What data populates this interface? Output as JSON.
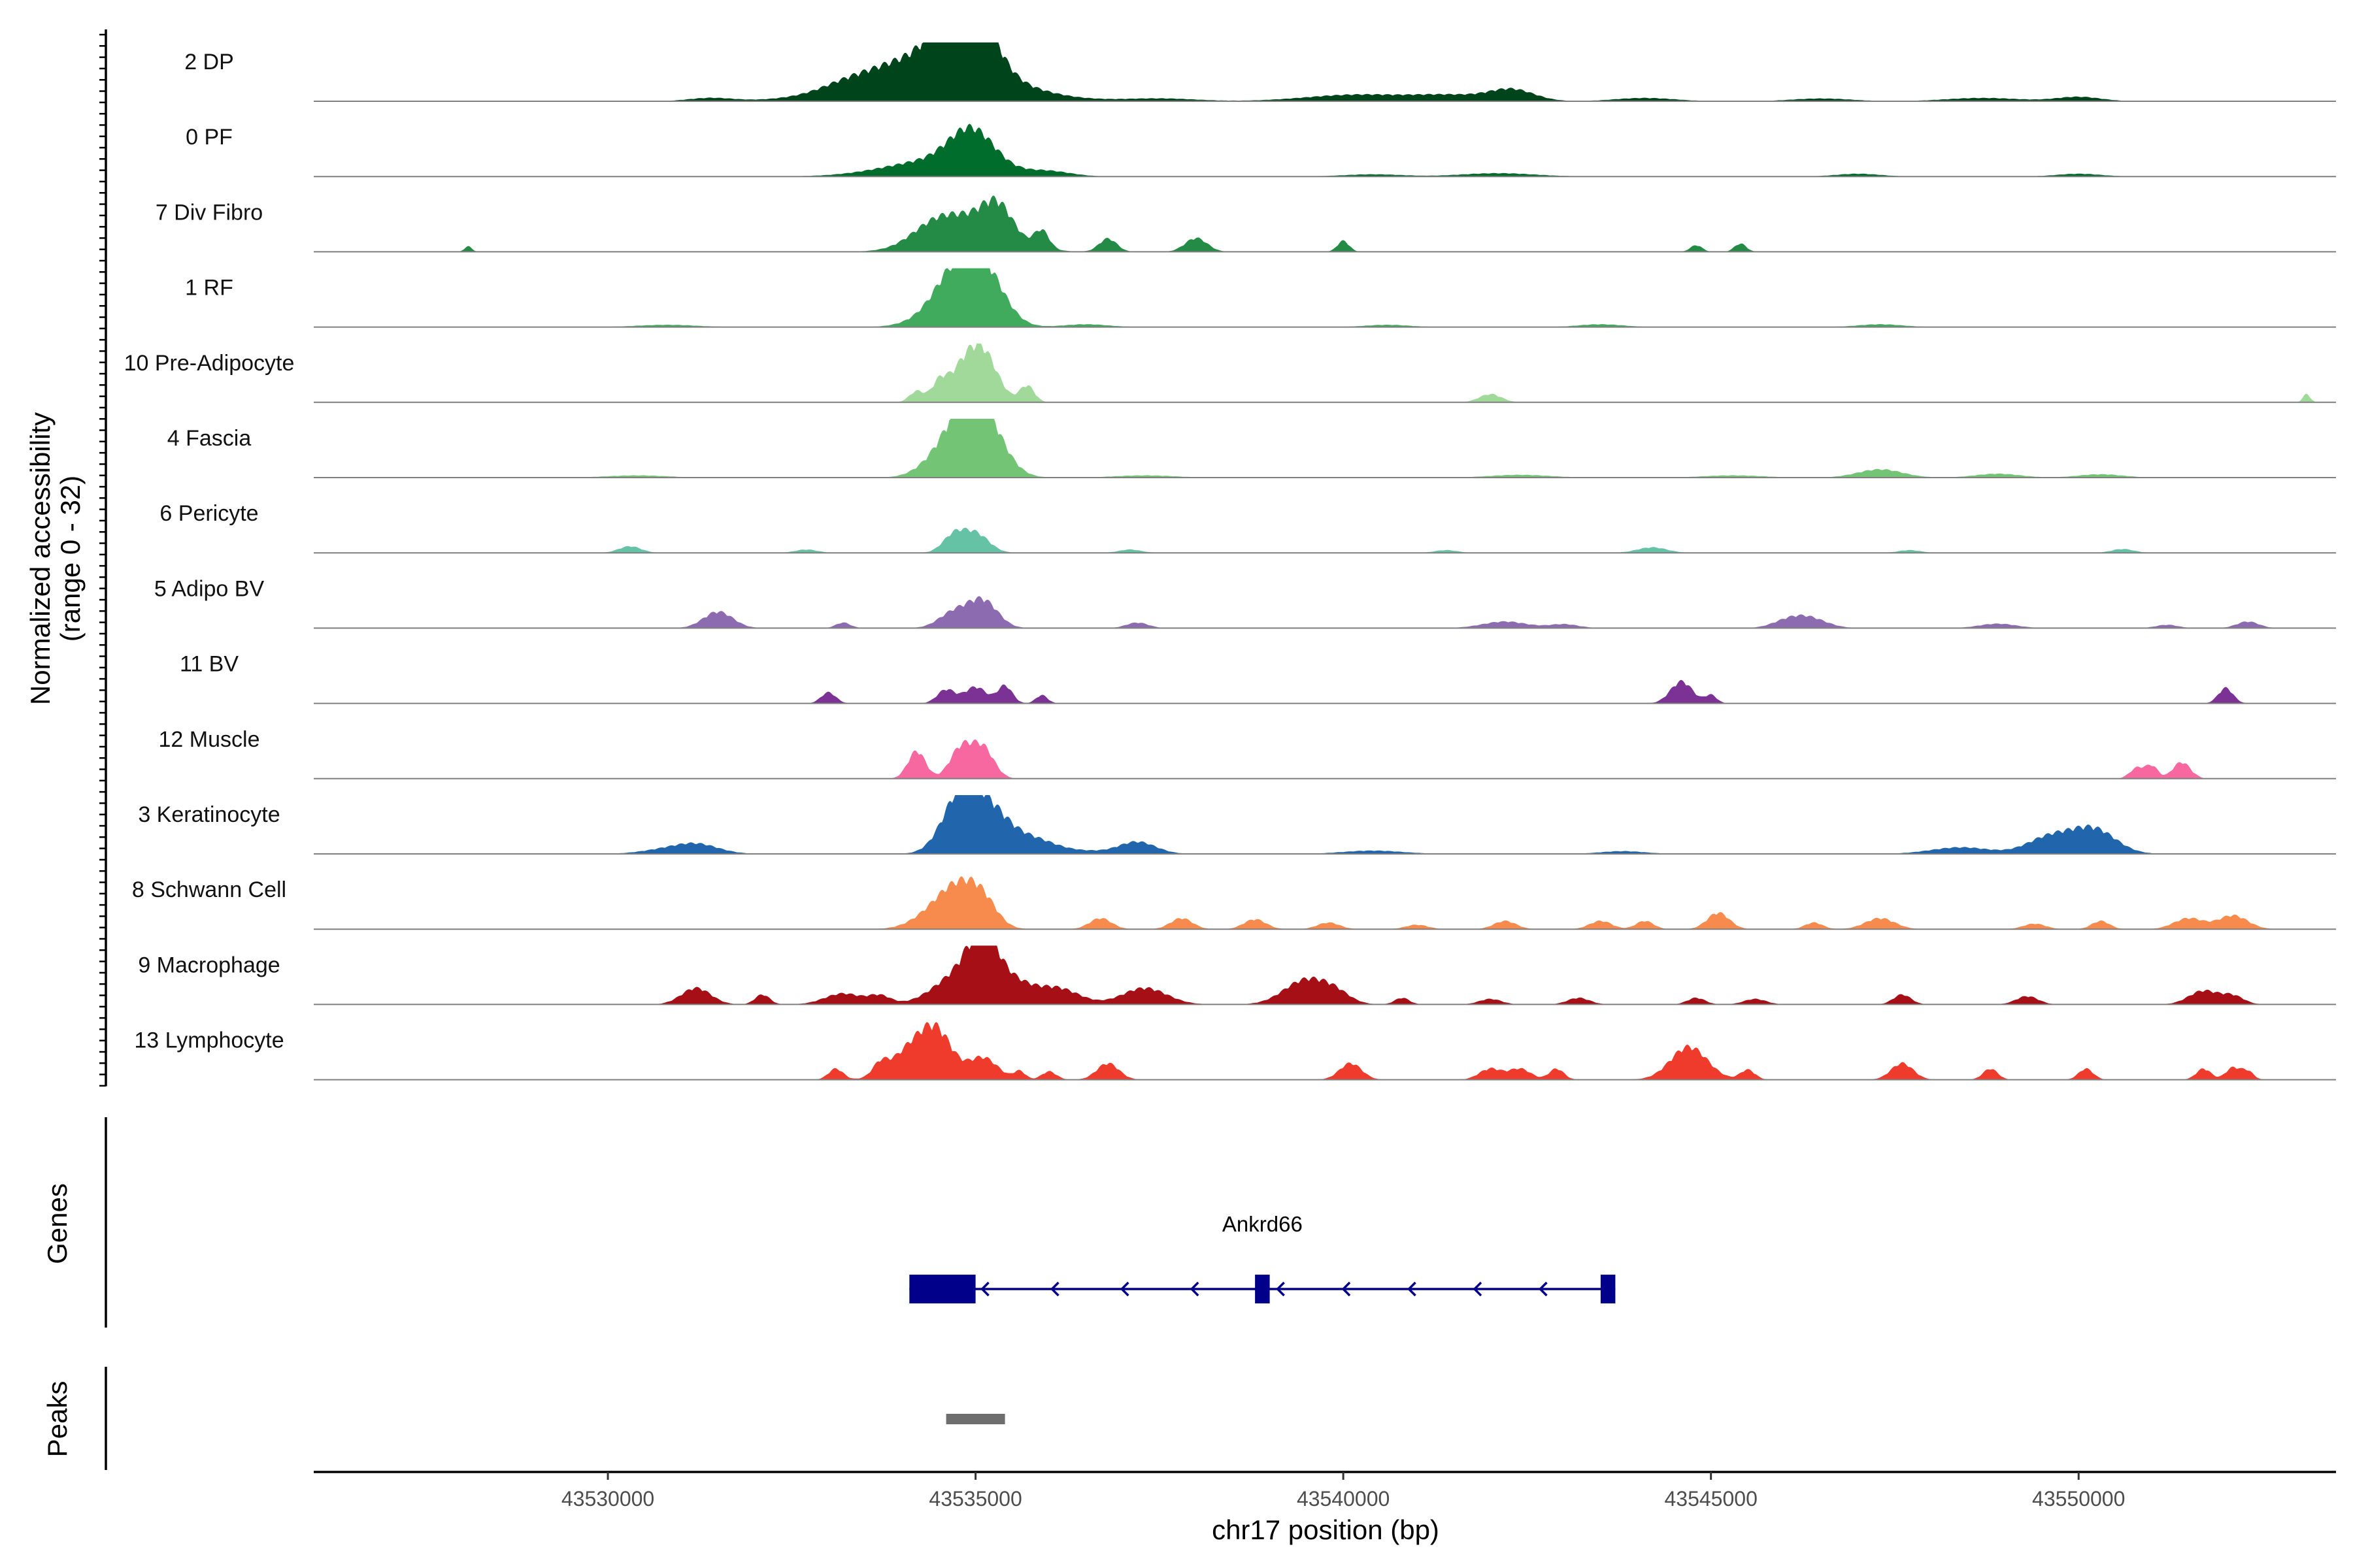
{
  "chart_data": {
    "type": "area",
    "title": "",
    "ylabel_line1": "Normalized accessibility",
    "ylabel_line2": "(range 0 - 32)",
    "y_range": [
      0,
      32
    ],
    "xlabel": "chr17 position (bp)",
    "x_range": [
      43526000,
      43553500
    ],
    "x_ticks": [
      43530000,
      43535000,
      43540000,
      43545000,
      43550000
    ],
    "x_tick_labels": [
      "43530000",
      "43535000",
      "43540000",
      "43545000",
      "43550000"
    ],
    "genes_label": "Genes",
    "peaks_label": "Peaks",
    "gene": {
      "name": "Ankrd66",
      "strand": "-",
      "start": 43534100,
      "end": 43543700,
      "exons": [
        [
          43534100,
          43535000
        ],
        [
          43538800,
          43539000
        ],
        [
          43543500,
          43543700
        ]
      ],
      "color": "#00008B"
    },
    "peaks": [
      {
        "start": 43534600,
        "end": 43535400,
        "color": "#6e6e6e"
      }
    ],
    "series": [
      {
        "name": "2 DP",
        "color": "#00441B",
        "peaks": [
          [
            43534400,
            900,
            0.85
          ],
          [
            43534750,
            280,
            1.0
          ],
          [
            43535100,
            250,
            0.55
          ],
          [
            43533200,
            300,
            0.06
          ],
          [
            43540200,
            700,
            0.12
          ],
          [
            43542300,
            300,
            0.2
          ],
          [
            43541500,
            500,
            0.1
          ],
          [
            43548700,
            500,
            0.06
          ],
          [
            43550000,
            300,
            0.08
          ],
          [
            43531400,
            300,
            0.06
          ],
          [
            43537500,
            500,
            0.05
          ],
          [
            43544100,
            400,
            0.06
          ],
          [
            43546500,
            400,
            0.05
          ]
        ]
      },
      {
        "name": "0 PF",
        "color": "#006D2C",
        "peaks": [
          [
            43534500,
            700,
            0.3
          ],
          [
            43534950,
            300,
            0.65
          ],
          [
            43536000,
            300,
            0.08
          ],
          [
            43542100,
            500,
            0.06
          ],
          [
            43547000,
            300,
            0.05
          ],
          [
            43540400,
            400,
            0.04
          ],
          [
            43550000,
            300,
            0.05
          ]
        ]
      },
      {
        "name": "7 Div Fibro",
        "color": "#238B45",
        "peaks": [
          [
            43534400,
            300,
            0.22
          ],
          [
            43534900,
            500,
            0.6
          ],
          [
            43535300,
            200,
            0.5
          ],
          [
            43535900,
            100,
            0.32
          ],
          [
            43536800,
            120,
            0.24
          ],
          [
            43538000,
            150,
            0.25
          ],
          [
            43540000,
            80,
            0.2
          ],
          [
            43544800,
            80,
            0.12
          ],
          [
            43545400,
            80,
            0.15
          ],
          [
            43528100,
            50,
            0.1
          ]
        ]
      },
      {
        "name": "1 RF",
        "color": "#41AB5D",
        "peaks": [
          [
            43534700,
            280,
            0.8
          ],
          [
            43535100,
            280,
            1.0
          ],
          [
            43534300,
            300,
            0.1
          ],
          [
            43530800,
            400,
            0.04
          ],
          [
            43536500,
            300,
            0.05
          ],
          [
            43543500,
            300,
            0.05
          ],
          [
            43547300,
            300,
            0.05
          ],
          [
            43540600,
            300,
            0.04
          ]
        ]
      },
      {
        "name": "10 Pre-Adipocyte",
        "color": "#A1D99B",
        "peaks": [
          [
            43534500,
            100,
            0.28
          ],
          [
            43534800,
            200,
            0.5
          ],
          [
            43535100,
            200,
            0.85
          ],
          [
            43535700,
            100,
            0.3
          ],
          [
            43542000,
            150,
            0.15
          ],
          [
            43553100,
            50,
            0.15
          ],
          [
            43534200,
            100,
            0.2
          ]
        ]
      },
      {
        "name": "4 Fascia",
        "color": "#74C476",
        "peaks": [
          [
            43534800,
            280,
            0.8
          ],
          [
            43535100,
            280,
            0.95
          ],
          [
            43534400,
            250,
            0.15
          ],
          [
            43547300,
            300,
            0.15
          ],
          [
            43548900,
            300,
            0.07
          ],
          [
            43537300,
            400,
            0.04
          ],
          [
            43542400,
            400,
            0.05
          ],
          [
            43545300,
            400,
            0.04
          ],
          [
            43530400,
            400,
            0.04
          ],
          [
            43550300,
            300,
            0.06
          ]
        ]
      },
      {
        "name": "6 Pericyte",
        "color": "#66C2A4",
        "peaks": [
          [
            43534700,
            150,
            0.3
          ],
          [
            43535000,
            180,
            0.35
          ],
          [
            43530300,
            150,
            0.12
          ],
          [
            43544200,
            200,
            0.1
          ],
          [
            43532700,
            150,
            0.06
          ],
          [
            43537100,
            150,
            0.06
          ],
          [
            43550600,
            150,
            0.07
          ],
          [
            43541400,
            150,
            0.05
          ],
          [
            43547700,
            150,
            0.05
          ]
        ]
      },
      {
        "name": "5 Adipo BV",
        "color": "#8C6BB1",
        "peaks": [
          [
            43531500,
            200,
            0.3
          ],
          [
            43534700,
            200,
            0.28
          ],
          [
            43535100,
            200,
            0.5
          ],
          [
            43546300,
            250,
            0.2
          ],
          [
            43546000,
            200,
            0.08
          ],
          [
            43542200,
            300,
            0.12
          ],
          [
            43543000,
            200,
            0.07
          ],
          [
            43548900,
            250,
            0.08
          ],
          [
            43533200,
            100,
            0.1
          ],
          [
            43552300,
            150,
            0.12
          ],
          [
            43537200,
            150,
            0.1
          ],
          [
            43551200,
            150,
            0.06
          ]
        ]
      },
      {
        "name": "11 BV",
        "color": "#7B3294",
        "peaks": [
          [
            43534600,
            120,
            0.25
          ],
          [
            43535000,
            150,
            0.3
          ],
          [
            43535400,
            100,
            0.32
          ],
          [
            43544600,
            150,
            0.4
          ],
          [
            43552000,
            100,
            0.28
          ],
          [
            43533000,
            100,
            0.2
          ],
          [
            43535900,
            80,
            0.15
          ],
          [
            43545000,
            80,
            0.15
          ]
        ]
      },
      {
        "name": "12 Muscle",
        "color": "#F768A1",
        "peaks": [
          [
            43534200,
            120,
            0.5
          ],
          [
            43534800,
            150,
            0.55
          ],
          [
            43535100,
            150,
            0.55
          ],
          [
            43551400,
            120,
            0.3
          ],
          [
            43550800,
            100,
            0.2
          ],
          [
            43551000,
            80,
            0.22
          ]
        ]
      },
      {
        "name": "3 Keratinocyte",
        "color": "#2166AC",
        "peaks": [
          [
            43534800,
            250,
            1.0
          ],
          [
            43535200,
            280,
            0.7
          ],
          [
            43535800,
            300,
            0.25
          ],
          [
            43537200,
            250,
            0.22
          ],
          [
            43550200,
            300,
            0.45
          ],
          [
            43549600,
            300,
            0.3
          ],
          [
            43531200,
            300,
            0.18
          ],
          [
            43530700,
            300,
            0.06
          ],
          [
            43548400,
            400,
            0.12
          ],
          [
            43540400,
            400,
            0.06
          ],
          [
            43543800,
            300,
            0.05
          ],
          [
            43536500,
            300,
            0.05
          ]
        ]
      },
      {
        "name": "8 Schwann Cell",
        "color": "#F78B4E",
        "peaks": [
          [
            43534500,
            300,
            0.35
          ],
          [
            43534800,
            250,
            0.55
          ],
          [
            43535100,
            200,
            0.42
          ],
          [
            43536700,
            150,
            0.2
          ],
          [
            43537800,
            150,
            0.2
          ],
          [
            43538800,
            150,
            0.18
          ],
          [
            43542200,
            150,
            0.15
          ],
          [
            43543500,
            150,
            0.15
          ],
          [
            43545100,
            150,
            0.3
          ],
          [
            43547300,
            200,
            0.2
          ],
          [
            43552100,
            200,
            0.25
          ],
          [
            43551500,
            200,
            0.2
          ],
          [
            43539800,
            150,
            0.12
          ],
          [
            43544100,
            120,
            0.15
          ],
          [
            43546400,
            120,
            0.12
          ],
          [
            43550300,
            120,
            0.15
          ],
          [
            43549400,
            150,
            0.1
          ],
          [
            43541000,
            150,
            0.08
          ]
        ]
      },
      {
        "name": "9 Macrophage",
        "color": "#A50F15",
        "peaks": [
          [
            43534800,
            350,
            0.55
          ],
          [
            43535100,
            200,
            0.9
          ],
          [
            43535500,
            250,
            0.35
          ],
          [
            43531200,
            200,
            0.3
          ],
          [
            43539500,
            300,
            0.45
          ],
          [
            43537300,
            300,
            0.3
          ],
          [
            43536100,
            300,
            0.3
          ],
          [
            43539900,
            200,
            0.15
          ],
          [
            43533200,
            250,
            0.2
          ],
          [
            43532100,
            100,
            0.18
          ],
          [
            43533700,
            150,
            0.15
          ],
          [
            43543200,
            150,
            0.12
          ],
          [
            43544800,
            120,
            0.12
          ],
          [
            43542000,
            150,
            0.1
          ],
          [
            43547600,
            120,
            0.18
          ],
          [
            43549300,
            150,
            0.15
          ],
          [
            43551700,
            200,
            0.25
          ],
          [
            43552100,
            150,
            0.15
          ],
          [
            43540800,
            100,
            0.12
          ],
          [
            43545600,
            150,
            0.1
          ]
        ]
      },
      {
        "name": "13 Lymphocyte",
        "color": "#EF3B2C",
        "peaks": [
          [
            43534200,
            300,
            0.65
          ],
          [
            43534500,
            200,
            0.55
          ],
          [
            43535100,
            200,
            0.4
          ],
          [
            43544700,
            250,
            0.6
          ],
          [
            43540100,
            150,
            0.3
          ],
          [
            43536800,
            150,
            0.3
          ],
          [
            43547600,
            150,
            0.3
          ],
          [
            43533100,
            100,
            0.2
          ],
          [
            43533700,
            100,
            0.2
          ],
          [
            43536000,
            100,
            0.15
          ],
          [
            43542000,
            150,
            0.2
          ],
          [
            43542400,
            150,
            0.2
          ],
          [
            43542900,
            100,
            0.2
          ],
          [
            43545500,
            100,
            0.18
          ],
          [
            43548800,
            100,
            0.2
          ],
          [
            43550100,
            100,
            0.2
          ],
          [
            43551700,
            100,
            0.2
          ],
          [
            43552100,
            100,
            0.22
          ],
          [
            43552300,
            80,
            0.15
          ],
          [
            43535600,
            80,
            0.15
          ]
        ]
      }
    ]
  }
}
